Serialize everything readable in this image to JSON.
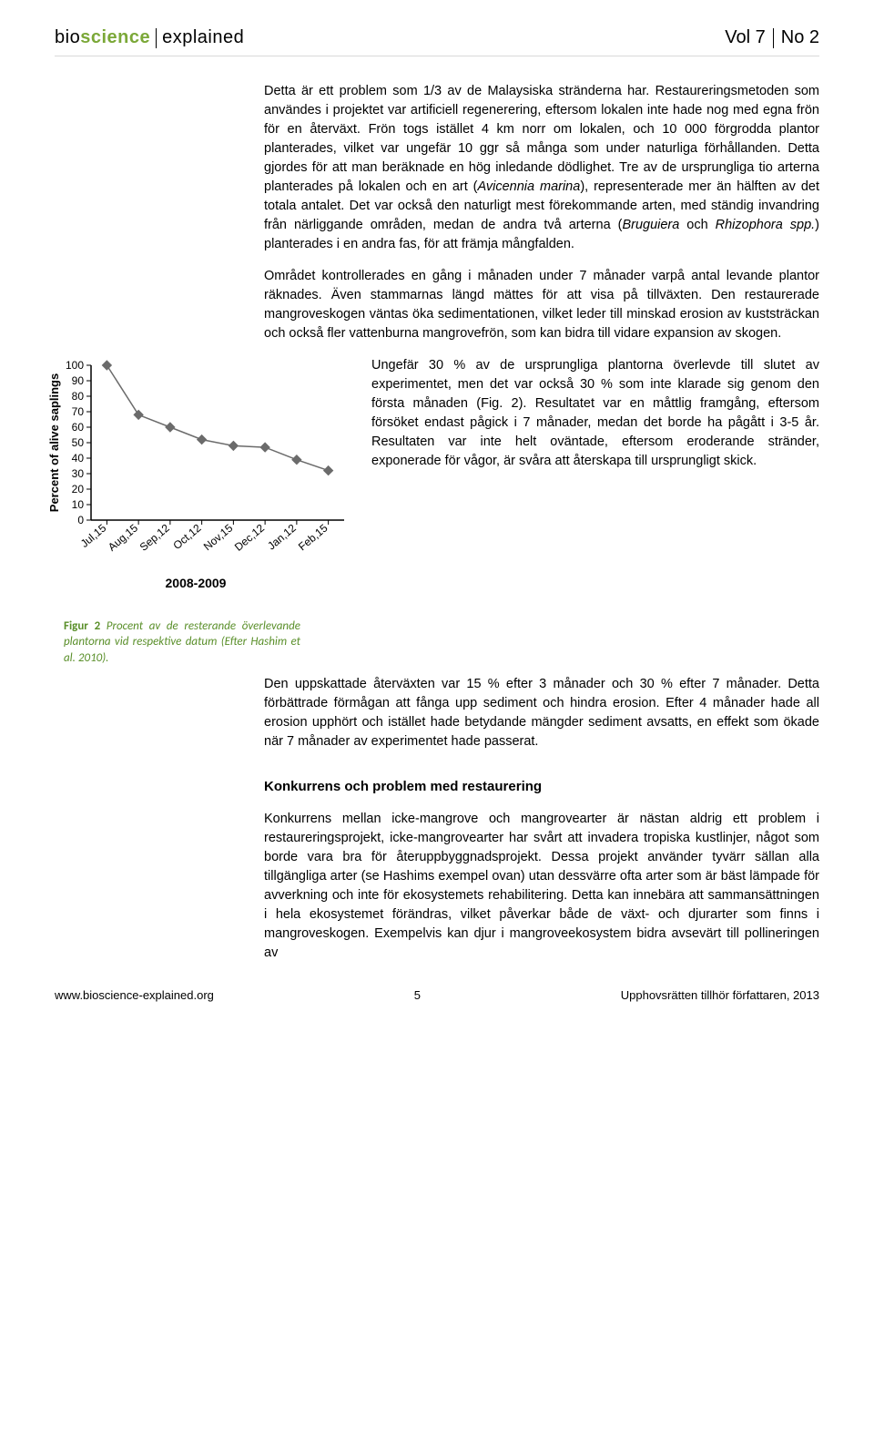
{
  "header": {
    "brand_bio": "bio",
    "brand_science": "science",
    "brand_explained": "explained",
    "vol_label": "Vol 7",
    "no_label": "No 2"
  },
  "paragraphs": {
    "p1": "Detta är ett problem som 1/3 av de Malaysiska stränderna har. Restaureringsmetoden som användes i projektet var artificiell regenerering, eftersom lokalen inte hade nog med egna frön för en återväxt. Frön togs istället 4 km norr om lokalen, och 10 000 förgrodda plantor planterades, vilket var ungefär 10 ggr så många som under naturliga förhållanden. Detta gjordes för att man beräknade en hög inledande dödlighet. Tre av de ursprungliga tio arterna planterades på lokalen och en art (",
    "p1_em": "Avicennia marina",
    "p1b": "), representerade mer än hälften av det totala antalet. Det var också den naturligt mest förekommande arten, med ständig invandring från närliggande områden, medan de andra två arterna (",
    "p1_em2": "Bruguiera",
    "p1c": " och ",
    "p1_em3": "Rhizophora spp.",
    "p1d": ") planterades i en andra fas, för att främja mångfalden.",
    "p2": "Området kontrollerades en gång i månaden under 7 månader varpå antal levande plantor räknades. Även stammarnas längd mättes för att visa på tillväxten. Den restaurerade mangroveskogen väntas öka sedimentationen, vilket leder till minskad erosion av kuststräckan och också fler vattenburna mangrovefrön, som kan bidra till vidare expansion av skogen.",
    "p3": "Ungefär 30 % av de ursprungliga plantorna överlevde till slutet av experimentet, men det var också 30 % som inte klarade sig genom den första månaden (Fig. 2). Resultatet var en måttlig framgång, eftersom försöket endast pågick i 7 månader, medan det borde ha pågått i 3-5 år. Resultaten var inte helt oväntade, eftersom eroderande stränder, exponerade för vågor, är svåra att återskapa till ursprungligt skick.",
    "p4": "Den uppskattade återväxten var 15 % efter 3 månader och 30 % efter 7 månader. Detta förbättrade förmågan att fånga upp sediment och hindra erosion. Efter 4 månader hade all erosion upphört och istället hade betydande mängder sediment avsatts, en effekt som ökade när 7 månader av experimentet hade passerat.",
    "h1": "Konkurrens och problem med restaurering",
    "p5": "Konkurrens mellan icke-mangrove och mangrovearter är nästan aldrig ett problem i restaureringsprojekt, icke-mangrovearter har svårt att invadera tropiska kustlinjer, något som borde vara bra för återuppbyggnadsprojekt. Dessa projekt använder tyvärr sällan alla tillgängliga arter (se Hashims exempel ovan) utan dessvärre ofta arter som är bäst lämpade för avverkning och inte för ekosystemets rehabilitering. Detta kan innebära att sammansättningen i hela ekosystemet förändras, vilket påverkar både de växt- och djurarter som finns i mangroveskogen. Exempelvis kan djur i mangroveekosystem bidra avsevärt till pollineringen av"
  },
  "chart": {
    "type": "line",
    "ylabel": "Percent of alive saplings",
    "x_labels": [
      "Jul,15",
      "Aug,15",
      "Sep,12",
      "Oct,12",
      "Nov,15",
      "Dec,12",
      "Jan,12",
      "Feb,15"
    ],
    "y_ticks": [
      0,
      10,
      20,
      30,
      40,
      50,
      60,
      70,
      80,
      90,
      100
    ],
    "values": [
      100,
      68,
      60,
      52,
      48,
      47,
      39,
      32
    ],
    "line_color": "#6B6B6B",
    "marker_color": "#6B6B6B",
    "axis_color": "#000000",
    "tick_fontsize": 12,
    "label_fontsize": 13,
    "marker_size": 5,
    "line_width": 1.5,
    "background_color": "#ffffff",
    "ylim": [
      0,
      100
    ],
    "period_label": "2008-2009"
  },
  "caption": {
    "fignum": "Figur 2",
    "text": " Procent av de resterande överlevande plantorna vid respektive datum (Efter Hashim et al. 2010)."
  },
  "footer": {
    "url": "www.bioscience-explained.org",
    "page": "5",
    "copy": "Upphovsrätten tillhör författaren, 2013"
  }
}
